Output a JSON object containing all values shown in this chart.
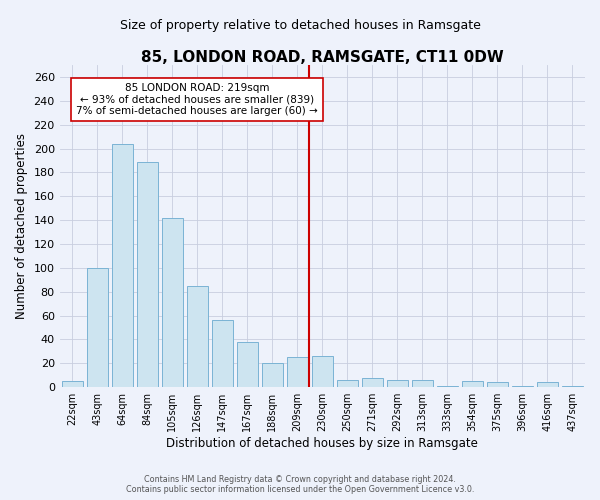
{
  "title": "85, LONDON ROAD, RAMSGATE, CT11 0DW",
  "subtitle": "Size of property relative to detached houses in Ramsgate",
  "xlabel": "Distribution of detached houses by size in Ramsgate",
  "ylabel": "Number of detached properties",
  "bar_labels": [
    "22sqm",
    "43sqm",
    "64sqm",
    "84sqm",
    "105sqm",
    "126sqm",
    "147sqm",
    "167sqm",
    "188sqm",
    "209sqm",
    "230sqm",
    "250sqm",
    "271sqm",
    "292sqm",
    "313sqm",
    "333sqm",
    "354sqm",
    "375sqm",
    "396sqm",
    "416sqm",
    "437sqm"
  ],
  "bar_values": [
    5,
    100,
    204,
    189,
    142,
    85,
    56,
    38,
    20,
    25,
    26,
    6,
    8,
    6,
    6,
    1,
    5,
    4,
    1,
    4,
    1
  ],
  "bar_color": "#cde4f0",
  "bar_edge_color": "#7ab3d4",
  "background_color": "#eef2fb",
  "grid_color": "#c8cedf",
  "vline_color": "#cc0000",
  "annotation_title": "85 LONDON ROAD: 219sqm",
  "annotation_line1": "← 93% of detached houses are smaller (839)",
  "annotation_line2": "7% of semi-detached houses are larger (60) →",
  "annotation_box_facecolor": "#ffffff",
  "annotation_box_edgecolor": "#cc0000",
  "ylim": [
    0,
    270
  ],
  "yticks": [
    0,
    20,
    40,
    60,
    80,
    100,
    120,
    140,
    160,
    180,
    200,
    220,
    240,
    260
  ],
  "title_fontsize": 11,
  "subtitle_fontsize": 9,
  "footer1": "Contains HM Land Registry data © Crown copyright and database right 2024.",
  "footer2": "Contains public sector information licensed under the Open Government Licence v3.0."
}
